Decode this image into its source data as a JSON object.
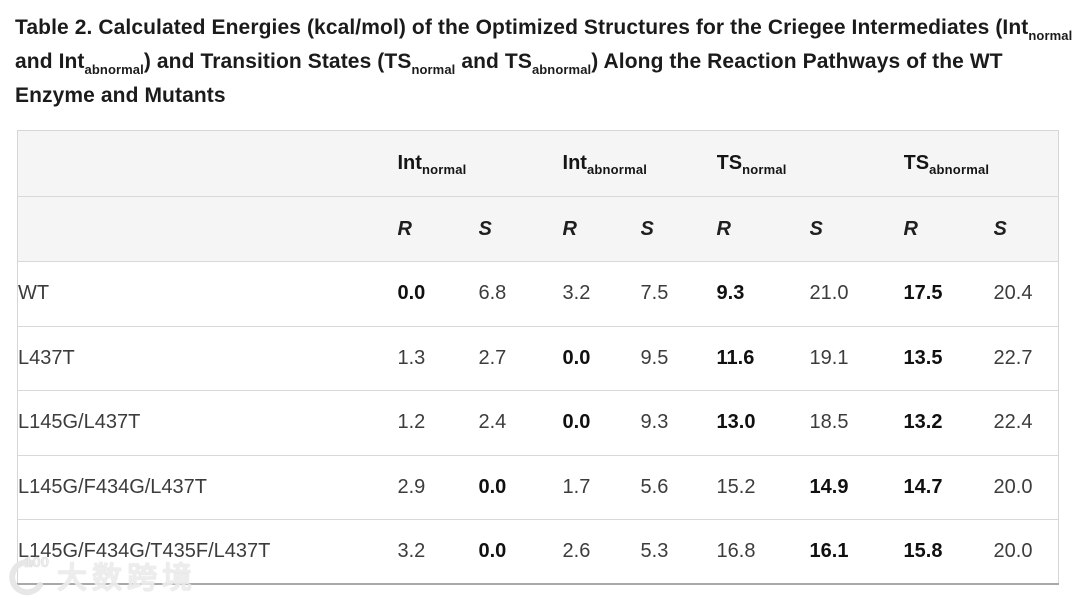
{
  "title": {
    "segments": [
      {
        "text": "Table 2. Calculated Energies (kcal/mol) of the Optimized Structures for the Criegee Intermediates (Int"
      },
      {
        "text": "normal",
        "sub": true
      },
      {
        "text": " and Int"
      },
      {
        "text": "abnormal",
        "sub": true
      },
      {
        "text": ") and Transition States (TS"
      },
      {
        "text": "normal",
        "sub": true
      },
      {
        "text": " and TS"
      },
      {
        "text": "abnormal",
        "sub": true
      },
      {
        "text": ") Along the Reaction Pathways of the WT Enzyme and Mutants"
      }
    ]
  },
  "table": {
    "column_groups": [
      {
        "main": "Int",
        "sub": "normal"
      },
      {
        "main": "Int",
        "sub": "abnormal"
      },
      {
        "main": "TS",
        "sub": "normal"
      },
      {
        "main": "TS",
        "sub": "abnormal"
      }
    ],
    "subheaders": [
      "R",
      "S",
      "R",
      "S",
      "R",
      "S",
      "R",
      "S"
    ],
    "rows": [
      {
        "label": "WT",
        "cells": [
          {
            "v": "0.0",
            "bold": true
          },
          {
            "v": "6.8"
          },
          {
            "v": "3.2"
          },
          {
            "v": "7.5"
          },
          {
            "v": "9.3",
            "bold": true
          },
          {
            "v": "21.0"
          },
          {
            "v": "17.5",
            "bold": true
          },
          {
            "v": "20.4"
          }
        ]
      },
      {
        "label": "L437T",
        "cells": [
          {
            "v": "1.3"
          },
          {
            "v": "2.7"
          },
          {
            "v": "0.0",
            "bold": true
          },
          {
            "v": "9.5"
          },
          {
            "v": "11.6",
            "bold": true
          },
          {
            "v": "19.1"
          },
          {
            "v": "13.5",
            "bold": true
          },
          {
            "v": "22.7"
          }
        ]
      },
      {
        "label": "L145G/L437T",
        "cells": [
          {
            "v": "1.2"
          },
          {
            "v": "2.4"
          },
          {
            "v": "0.0",
            "bold": true
          },
          {
            "v": "9.3"
          },
          {
            "v": "13.0",
            "bold": true
          },
          {
            "v": "18.5"
          },
          {
            "v": "13.2",
            "bold": true
          },
          {
            "v": "22.4"
          }
        ]
      },
      {
        "label": "L145G/F434G/L437T",
        "cells": [
          {
            "v": "2.9"
          },
          {
            "v": "0.0",
            "bold": true
          },
          {
            "v": "1.7"
          },
          {
            "v": "5.6"
          },
          {
            "v": "15.2"
          },
          {
            "v": "14.9",
            "bold": true
          },
          {
            "v": "14.7",
            "bold": true
          },
          {
            "v": "20.0"
          }
        ]
      },
      {
        "label": "L145G/F434G/T435F/L437T",
        "cells": [
          {
            "v": "3.2"
          },
          {
            "v": "0.0",
            "bold": true
          },
          {
            "v": "2.6"
          },
          {
            "v": "5.3"
          },
          {
            "v": "16.8"
          },
          {
            "v": "16.1",
            "bold": true
          },
          {
            "v": "15.8",
            "bold": true
          },
          {
            "v": "20.0"
          }
        ]
      }
    ]
  },
  "watermark": {
    "logo_text": "100",
    "text": "大数跨境"
  },
  "colors": {
    "header_bg": "#f5f5f6",
    "row_border": "#d9d9da",
    "outer_border": "#d6d6d8",
    "bottom_border": "#a9a9ab",
    "title_text": "#1b1b1b",
    "body_text": "#3c3c3c",
    "bold_text": "#101010",
    "watermark_text": "#ececec"
  }
}
